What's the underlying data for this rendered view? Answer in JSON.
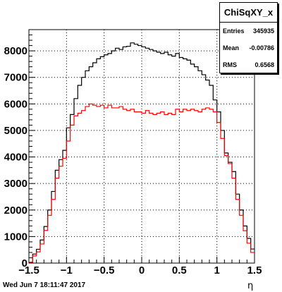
{
  "stats": {
    "title": "ChiSqXY_x",
    "rows": [
      {
        "label": "Entries",
        "value": "345935"
      },
      {
        "label": "Mean",
        "value": "-0.00786"
      },
      {
        "label": "RMS",
        "value": "0.6568"
      }
    ]
  },
  "footer": {
    "date": "Wed Jun  7 18:11:47 2017"
  },
  "chart_data": {
    "type": "line",
    "xlabel": "η",
    "ylabel": "",
    "xlim": [
      -1.5,
      1.5
    ],
    "ylim": [
      0,
      8800
    ],
    "grid": true,
    "x_ticks": [
      -1.5,
      -1,
      -0.5,
      0,
      0.5,
      1,
      1.5
    ],
    "x_tick_labels": [
      "−1.5",
      "−1",
      "−0.5",
      "0",
      "0.5",
      "1",
      "1.5"
    ],
    "y_ticks": [
      0,
      1000,
      2000,
      3000,
      4000,
      5000,
      6000,
      7000,
      8000
    ],
    "y_tick_labels": [
      "0",
      "1000",
      "2000",
      "3000",
      "4000",
      "5000",
      "6000",
      "7000",
      "8000"
    ],
    "bin_edges_start": -1.5,
    "bin_width": 0.05,
    "series": [
      {
        "color": "#000000",
        "values": [
          30,
          340,
          520,
          870,
          1380,
          2000,
          2700,
          3500,
          3900,
          4250,
          5100,
          5600,
          6200,
          6700,
          7000,
          7250,
          7400,
          7550,
          7700,
          7780,
          7850,
          7900,
          8000,
          8100,
          8050,
          8150,
          8170,
          8300,
          8250,
          8200,
          8150,
          8100,
          8050,
          8000,
          7950,
          7900,
          7950,
          7850,
          7800,
          7900,
          7750,
          7700,
          7650,
          7500,
          7400,
          7250,
          7100,
          6900,
          6700,
          6150,
          5700,
          5000,
          4150,
          3800,
          3450,
          2600,
          2000,
          1400,
          930,
          530
        ]
      },
      {
        "color": "#ff0000",
        "values": [
          30,
          270,
          420,
          720,
          1230,
          1800,
          2400,
          3200,
          3650,
          3950,
          4600,
          5200,
          5550,
          5650,
          5750,
          5900,
          6000,
          5950,
          5900,
          5950,
          5850,
          5950,
          5850,
          5850,
          5900,
          5800,
          5750,
          5800,
          5700,
          5700,
          5650,
          5750,
          5650,
          5600,
          5650,
          5700,
          5600,
          5650,
          5600,
          5800,
          5700,
          5800,
          5750,
          5800,
          5750,
          5700,
          5800,
          5850,
          5800,
          5700,
          5300,
          4700,
          4050,
          3750,
          3200,
          2400,
          1800,
          1220,
          750,
          400
        ]
      }
    ]
  }
}
